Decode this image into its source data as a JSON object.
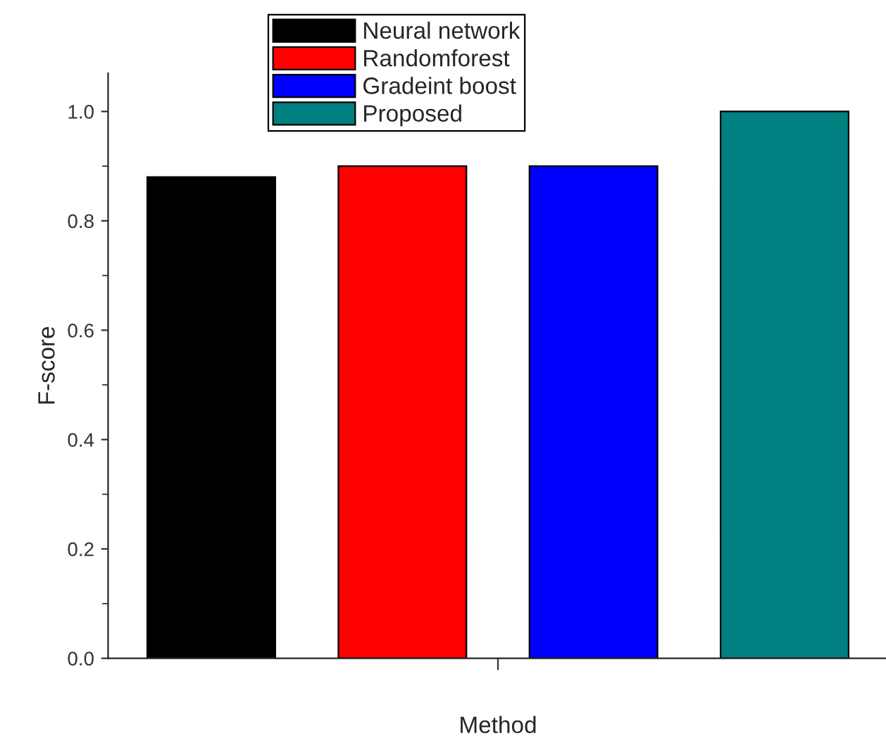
{
  "chart_data": {
    "type": "bar",
    "xlabel": "Method",
    "ylabel": "F-score",
    "categories": [
      null
    ],
    "series": [
      {
        "name": "Neural network",
        "color": "#000000",
        "values": [
          0.88
        ]
      },
      {
        "name": "Randomforest",
        "color": "#ff0000",
        "values": [
          0.9
        ]
      },
      {
        "name": "Gradeint boost",
        "color": "#0000ff",
        "values": [
          0.9
        ]
      },
      {
        "name": "Proposed",
        "color": "#008080",
        "values": [
          1.0
        ]
      }
    ],
    "ylim": [
      0,
      1.07
    ],
    "yticks": [
      {
        "value": 0,
        "label": "0.0"
      },
      0.2,
      0.4,
      0.6,
      0.8,
      {
        "value": 1,
        "label": "1.0"
      }
    ],
    "grid": false,
    "legend": "top"
  }
}
